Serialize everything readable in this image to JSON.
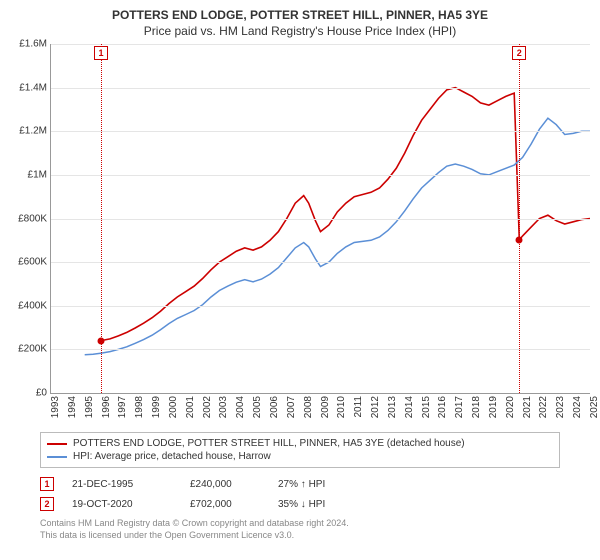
{
  "title_line1": "POTTERS END LODGE, POTTER STREET HILL, PINNER, HA5 3YE",
  "title_line2": "Price paid vs. HM Land Registry's House Price Index (HPI)",
  "chart": {
    "type": "line",
    "background_color": "#ffffff",
    "grid_color": "#e5e5e5",
    "axis_color": "#999999",
    "y": {
      "min": 0,
      "max": 1600000,
      "step": 200000,
      "ticks": [
        "£0",
        "£200K",
        "£400K",
        "£600K",
        "£800K",
        "£1M",
        "£1.2M",
        "£1.4M",
        "£1.6M"
      ]
    },
    "x": {
      "min": 1993,
      "max": 2025,
      "ticks": [
        1993,
        1994,
        1995,
        1996,
        1997,
        1998,
        1999,
        2000,
        2001,
        2002,
        2003,
        2004,
        2005,
        2006,
        2007,
        2008,
        2009,
        2010,
        2011,
        2012,
        2013,
        2014,
        2015,
        2016,
        2017,
        2018,
        2019,
        2020,
        2021,
        2022,
        2023,
        2024,
        2025
      ]
    },
    "series": [
      {
        "id": "price_paid",
        "label": "POTTERS END LODGE, POTTER STREET HILL, PINNER, HA5 3YE (detached house)",
        "color": "#cc0000",
        "line_width": 1.6,
        "data": [
          [
            1995.97,
            240000
          ],
          [
            1996.5,
            248000
          ],
          [
            1997,
            262000
          ],
          [
            1997.5,
            278000
          ],
          [
            1998,
            298000
          ],
          [
            1998.5,
            320000
          ],
          [
            1999,
            345000
          ],
          [
            1999.5,
            375000
          ],
          [
            2000,
            410000
          ],
          [
            2000.5,
            440000
          ],
          [
            2001,
            465000
          ],
          [
            2001.5,
            490000
          ],
          [
            2002,
            525000
          ],
          [
            2002.5,
            565000
          ],
          [
            2003,
            600000
          ],
          [
            2003.5,
            625000
          ],
          [
            2004,
            650000
          ],
          [
            2004.5,
            665000
          ],
          [
            2005,
            655000
          ],
          [
            2005.5,
            670000
          ],
          [
            2006,
            700000
          ],
          [
            2006.5,
            740000
          ],
          [
            2007,
            800000
          ],
          [
            2007.5,
            870000
          ],
          [
            2008,
            905000
          ],
          [
            2008.3,
            870000
          ],
          [
            2008.7,
            790000
          ],
          [
            2009,
            740000
          ],
          [
            2009.5,
            770000
          ],
          [
            2010,
            830000
          ],
          [
            2010.5,
            870000
          ],
          [
            2011,
            900000
          ],
          [
            2011.5,
            910000
          ],
          [
            2012,
            920000
          ],
          [
            2012.5,
            940000
          ],
          [
            2013,
            980000
          ],
          [
            2013.5,
            1030000
          ],
          [
            2014,
            1100000
          ],
          [
            2014.5,
            1180000
          ],
          [
            2015,
            1250000
          ],
          [
            2015.5,
            1300000
          ],
          [
            2016,
            1350000
          ],
          [
            2016.5,
            1390000
          ],
          [
            2017,
            1400000
          ],
          [
            2017.5,
            1380000
          ],
          [
            2018,
            1360000
          ],
          [
            2018.5,
            1330000
          ],
          [
            2019,
            1320000
          ],
          [
            2019.5,
            1340000
          ],
          [
            2020,
            1360000
          ],
          [
            2020.5,
            1375000
          ],
          [
            2020.8,
            702000
          ],
          [
            2021,
            720000
          ],
          [
            2021.5,
            760000
          ],
          [
            2022,
            800000
          ],
          [
            2022.5,
            815000
          ],
          [
            2023,
            790000
          ],
          [
            2023.5,
            775000
          ],
          [
            2024,
            785000
          ],
          [
            2024.5,
            795000
          ],
          [
            2025,
            800000
          ]
        ]
      },
      {
        "id": "hpi",
        "label": "HPI: Average price, detached house, Harrow",
        "color": "#5b8fd6",
        "line_width": 1.5,
        "data": [
          [
            1995,
            175000
          ],
          [
            1995.5,
            178000
          ],
          [
            1996,
            183000
          ],
          [
            1996.5,
            190000
          ],
          [
            1997,
            200000
          ],
          [
            1997.5,
            212000
          ],
          [
            1998,
            228000
          ],
          [
            1998.5,
            245000
          ],
          [
            1999,
            265000
          ],
          [
            1999.5,
            290000
          ],
          [
            2000,
            318000
          ],
          [
            2000.5,
            342000
          ],
          [
            2001,
            360000
          ],
          [
            2001.5,
            378000
          ],
          [
            2002,
            405000
          ],
          [
            2002.5,
            440000
          ],
          [
            2003,
            470000
          ],
          [
            2003.5,
            490000
          ],
          [
            2004,
            508000
          ],
          [
            2004.5,
            520000
          ],
          [
            2005,
            510000
          ],
          [
            2005.5,
            522000
          ],
          [
            2006,
            545000
          ],
          [
            2006.5,
            575000
          ],
          [
            2007,
            620000
          ],
          [
            2007.5,
            665000
          ],
          [
            2008,
            690000
          ],
          [
            2008.3,
            670000
          ],
          [
            2008.7,
            615000
          ],
          [
            2009,
            580000
          ],
          [
            2009.5,
            600000
          ],
          [
            2010,
            640000
          ],
          [
            2010.5,
            670000
          ],
          [
            2011,
            690000
          ],
          [
            2011.5,
            695000
          ],
          [
            2012,
            700000
          ],
          [
            2012.5,
            715000
          ],
          [
            2013,
            745000
          ],
          [
            2013.5,
            785000
          ],
          [
            2014,
            835000
          ],
          [
            2014.5,
            890000
          ],
          [
            2015,
            940000
          ],
          [
            2015.5,
            975000
          ],
          [
            2016,
            1010000
          ],
          [
            2016.5,
            1040000
          ],
          [
            2017,
            1050000
          ],
          [
            2017.5,
            1040000
          ],
          [
            2018,
            1025000
          ],
          [
            2018.5,
            1005000
          ],
          [
            2019,
            1000000
          ],
          [
            2019.5,
            1015000
          ],
          [
            2020,
            1030000
          ],
          [
            2020.5,
            1045000
          ],
          [
            2021,
            1080000
          ],
          [
            2021.5,
            1140000
          ],
          [
            2022,
            1210000
          ],
          [
            2022.5,
            1260000
          ],
          [
            2023,
            1230000
          ],
          [
            2023.5,
            1185000
          ],
          [
            2024,
            1190000
          ],
          [
            2024.5,
            1200000
          ],
          [
            2025,
            1200000
          ]
        ]
      }
    ],
    "markers": [
      {
        "n": "1",
        "year": 1995.97,
        "value": 240000,
        "color": "#cc0000"
      },
      {
        "n": "2",
        "year": 2020.8,
        "value": 702000,
        "color": "#cc0000"
      }
    ]
  },
  "legend": [
    {
      "color": "#cc0000",
      "text": "POTTERS END LODGE, POTTER STREET HILL, PINNER, HA5 3YE (detached house)"
    },
    {
      "color": "#5b8fd6",
      "text": "HPI: Average price, detached house, Harrow"
    }
  ],
  "transactions": [
    {
      "n": "1",
      "color": "#cc0000",
      "date": "21-DEC-1995",
      "price": "£240,000",
      "pct": "27% ↑ HPI"
    },
    {
      "n": "2",
      "color": "#cc0000",
      "date": "19-OCT-2020",
      "price": "£702,000",
      "pct": "35% ↓ HPI"
    }
  ],
  "footer_line1": "Contains HM Land Registry data © Crown copyright and database right 2024.",
  "footer_line2": "This data is licensed under the Open Government Licence v3.0."
}
